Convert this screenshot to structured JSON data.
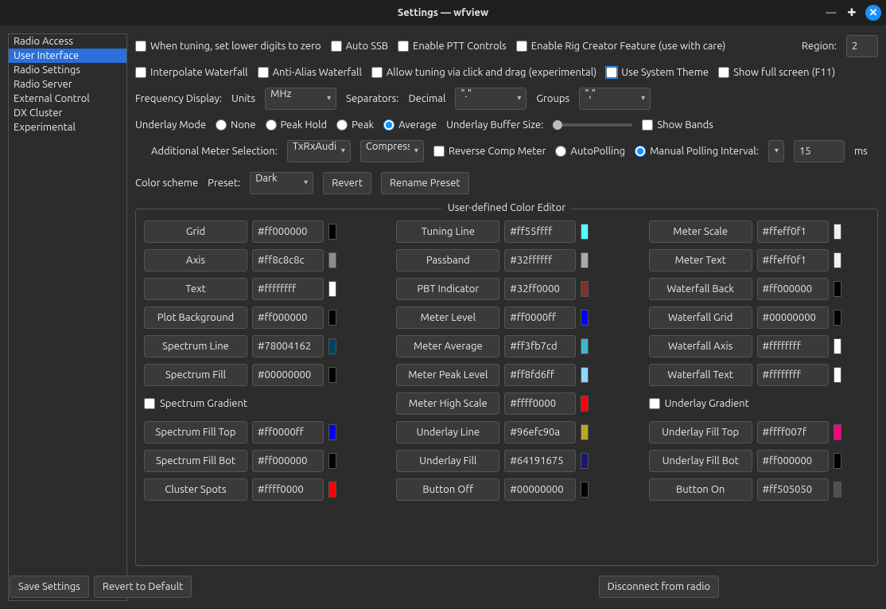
{
  "window": {
    "title": "Settings — wfview"
  },
  "sidebar": {
    "items": [
      {
        "label": "Radio Access"
      },
      {
        "label": "User Interface"
      },
      {
        "label": "Radio Settings"
      },
      {
        "label": "Radio Server"
      },
      {
        "label": "External Control"
      },
      {
        "label": "DX Cluster"
      },
      {
        "label": "Experimental"
      }
    ],
    "selected_index": 1
  },
  "top": {
    "tuning_zero": "When tuning, set lower digits to zero",
    "auto_ssb": "Auto SSB",
    "enable_ptt": "Enable PTT Controls",
    "rig_creator": "Enable Rig Creator Feature (use with care)",
    "region_label": "Region:",
    "region_value": "2",
    "interpolate": "Interpolate Waterfall",
    "antialias": "Anti-Alias Waterfall",
    "clickdrag": "Allow tuning via click and drag (experimental)",
    "system_theme": "Use System Theme",
    "fullscreen": "Show full screen (F11)",
    "freq_label": "Frequency Display:",
    "units_label": "Units",
    "units_value": "MHz",
    "sep_label": "Separators:",
    "decimal_label": "Decimal",
    "decimal_value": "\".\"",
    "groups_label": "Groups",
    "groups_value": "\",\"",
    "underlay_label": "Underlay Mode",
    "underlay_none": "None",
    "underlay_peakhold": "Peak Hold",
    "underlay_peak": "Peak",
    "underlay_average": "Average",
    "underlay_buf_label": "Underlay Buffer Size:",
    "show_bands": "Show Bands",
    "meter_sel_label": "Additional Meter Selection:",
    "meter1_value": "TxRxAudio",
    "meter2_value": "Compression",
    "reverse_comp": "Reverse Comp Meter",
    "autopolling": "AutoPolling",
    "manual_poll": "Manual Polling Interval:",
    "poll_value": "15",
    "ms": "ms",
    "colorscheme_label": "Color scheme",
    "preset_label": "Preset:",
    "preset_value": "Dark",
    "revert_btn": "Revert",
    "rename_btn": "Rename Preset"
  },
  "group_title": "User-defined Color Editor",
  "colors": {
    "col1": [
      {
        "label": "Grid",
        "hex": "#ff000000",
        "sw": "#000000"
      },
      {
        "label": "Axis",
        "hex": "#ff8c8c8c",
        "sw": "#8c8c8c"
      },
      {
        "label": "Text",
        "hex": "#ffffffff",
        "sw": "#ffffff"
      },
      {
        "label": "Plot Background",
        "hex": "#ff000000",
        "sw": "#000000"
      },
      {
        "label": "Spectrum Line",
        "hex": "#78004162",
        "sw": "#004162"
      },
      {
        "label": "Spectrum Fill",
        "hex": "#00000000",
        "sw": "#000000"
      }
    ],
    "spectrum_gradient_label": "Spectrum Gradient",
    "col1b": [
      {
        "label": "Spectrum Fill Top",
        "hex": "#ff0000ff",
        "sw": "#0000ff"
      },
      {
        "label": "Spectrum Fill Bot",
        "hex": "#ff000000",
        "sw": "#000000"
      },
      {
        "label": "Cluster Spots",
        "hex": "#ffff0000",
        "sw": "#ff0000"
      }
    ],
    "col2": [
      {
        "label": "Tuning Line",
        "hex": "#ff55ffff",
        "sw": "#55ffff"
      },
      {
        "label": "Passband",
        "hex": "#32ffffff",
        "sw": "#aaaaaa"
      },
      {
        "label": "PBT Indicator",
        "hex": "#32ff0000",
        "sw": "#803030"
      },
      {
        "label": "Meter Level",
        "hex": "#ff0000ff",
        "sw": "#0000ff"
      },
      {
        "label": "Meter Average",
        "hex": "#ff3fb7cd",
        "sw": "#3fb7cd"
      },
      {
        "label": "Meter Peak Level",
        "hex": "#ff8fd6ff",
        "sw": "#8fd6ff"
      },
      {
        "label": "Meter High Scale",
        "hex": "#ffff0000",
        "sw": "#ff0000"
      },
      {
        "label": "Underlay Line",
        "hex": "#96efc90a",
        "sw": "#bfa820"
      },
      {
        "label": "Underlay Fill",
        "hex": "#64191675",
        "sw": "#191675"
      },
      {
        "label": "Button Off",
        "hex": "#00000000",
        "sw": "#000000"
      }
    ],
    "col3": [
      {
        "label": "Meter Scale",
        "hex": "#ffeff0f1",
        "sw": "#eff0f1"
      },
      {
        "label": "Meter Text",
        "hex": "#ffeff0f1",
        "sw": "#eff0f1"
      },
      {
        "label": "Waterfall Back",
        "hex": "#ff000000",
        "sw": "#000000"
      },
      {
        "label": "Waterfall Grid",
        "hex": "#00000000",
        "sw": "#000000"
      },
      {
        "label": "Waterfall Axis",
        "hex": "#ffffffff",
        "sw": "#ffffff"
      },
      {
        "label": "Waterfall Text",
        "hex": "#ffffffff",
        "sw": "#ffffff"
      }
    ],
    "underlay_gradient_label": "Underlay Gradient",
    "col3b": [
      {
        "label": "Underlay Fill Top",
        "hex": "#ffff007f",
        "sw": "#ff007f"
      },
      {
        "label": "Underlay Fill Bot",
        "hex": "#ff000000",
        "sw": "#000000"
      },
      {
        "label": "Button On",
        "hex": "#ff505050",
        "sw": "#505050"
      }
    ]
  },
  "bottom": {
    "save": "Save Settings",
    "revert": "Revert to Default",
    "disconnect": "Disconnect from radio"
  }
}
